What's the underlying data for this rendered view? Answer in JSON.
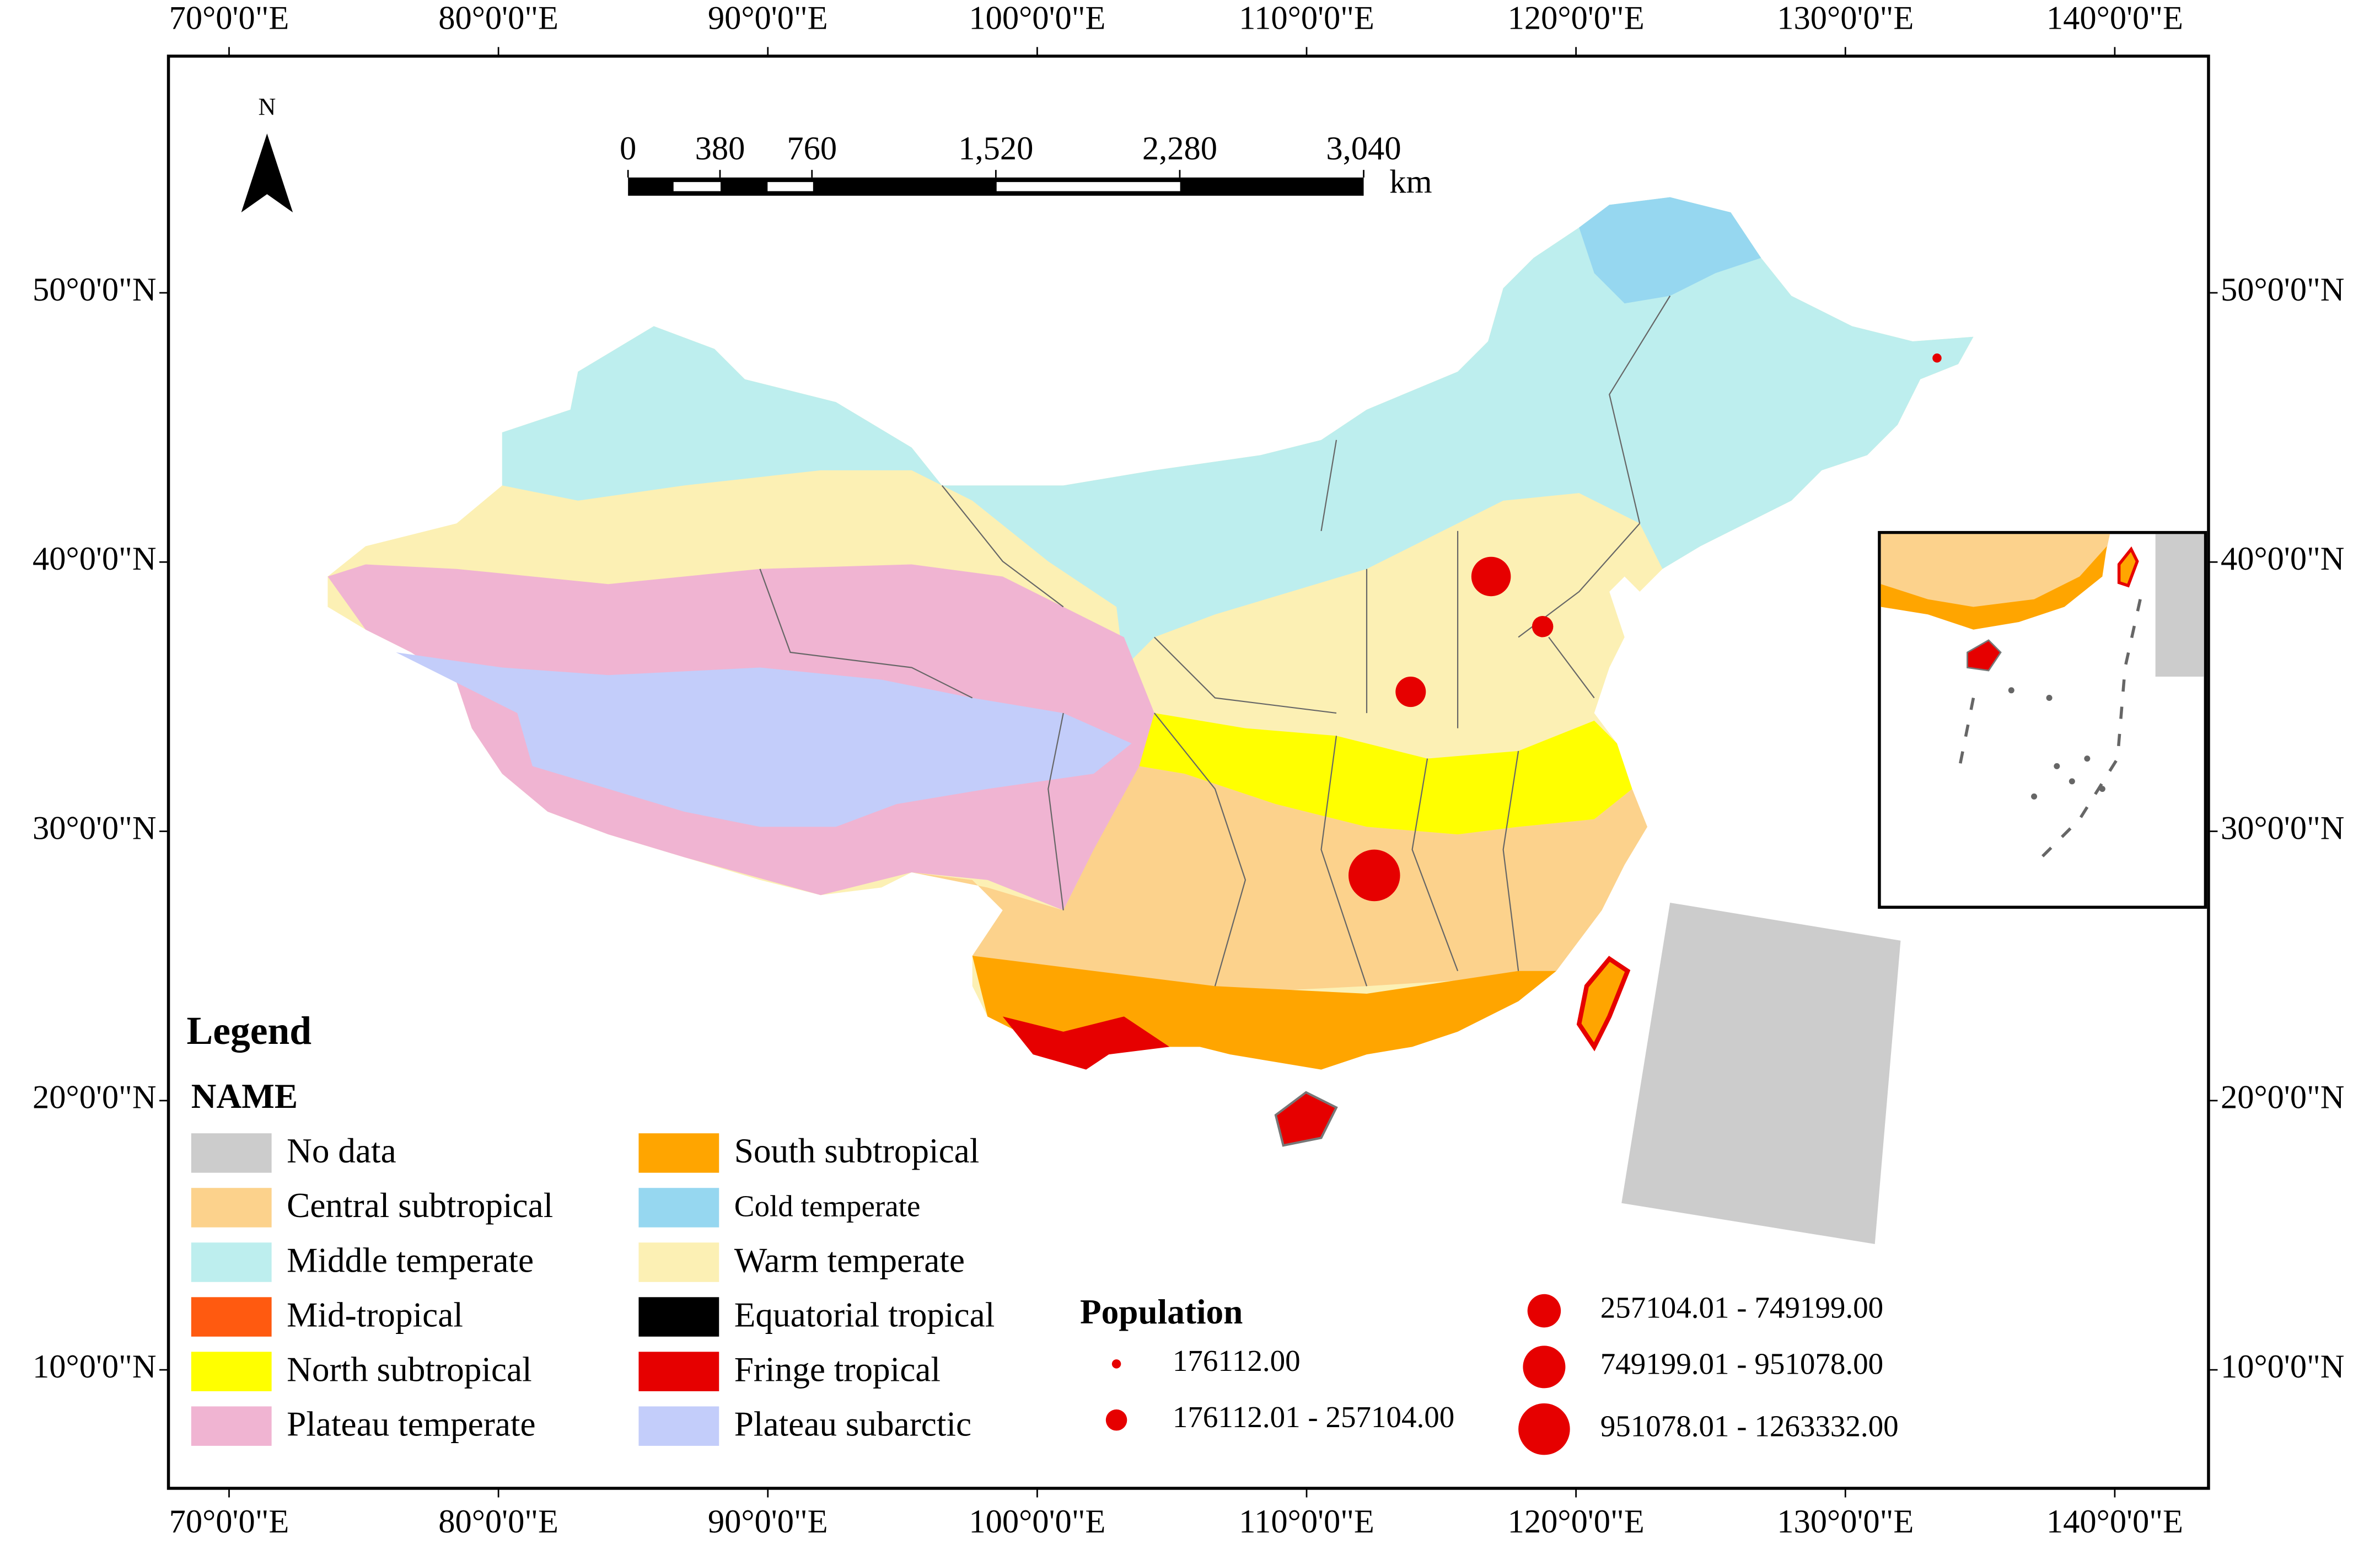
{
  "map": {
    "xlim": [
      67.75,
      143.48
    ],
    "ylim": [
      5.6,
      58.79
    ],
    "xticks": [
      {
        "value": 70,
        "label": "70°0'0\"E"
      },
      {
        "value": 80,
        "label": "80°0'0\"E"
      },
      {
        "value": 90,
        "label": "90°0'0\"E"
      },
      {
        "value": 100,
        "label": "100°0'0\"E"
      },
      {
        "value": 110,
        "label": "110°0'0\"E"
      },
      {
        "value": 120,
        "label": "120°0'0\"E"
      },
      {
        "value": 130,
        "label": "130°0'0\"E"
      },
      {
        "value": 140,
        "label": "140°0'0\"E"
      }
    ],
    "yticks": [
      {
        "value": 50,
        "label": "50°0'0\"N"
      },
      {
        "value": 40,
        "label": "40°0'0\"N"
      },
      {
        "value": 30,
        "label": "30°0'0\"N"
      },
      {
        "value": 20,
        "label": "20°0'0\"N"
      },
      {
        "value": 10,
        "label": "10°0'0\"N"
      }
    ]
  },
  "north_arrow": "N",
  "scale_bar": {
    "range": [
      0,
      3040
    ],
    "ticks": [
      0,
      380,
      760,
      {
        "value": 1520,
        "label": "1,520"
      },
      {
        "value": 2280,
        "label": "2,280"
      },
      {
        "value": 3040,
        "label": "3,040"
      }
    ],
    "unit": "km"
  },
  "legend": {
    "title": "Legend",
    "subtitle": "NAME",
    "items": [
      {
        "label": "No data",
        "color": "#cccccc"
      },
      {
        "label": "Central subtropical",
        "color": "#fcd28c"
      },
      {
        "label": "Middle temperate",
        "color": "#bdeeee"
      },
      {
        "label": "Mid-tropical",
        "color": "#ff5a10"
      },
      {
        "label": "North subtropical",
        "color": "#ffff00"
      },
      {
        "label": "Plateau temperate",
        "color": "#f0b4d2"
      },
      {
        "label": "South subtropical",
        "color": "#ffa500"
      },
      {
        "label": "Cold temperate",
        "color": "#96d7f0"
      },
      {
        "label": "Warm temperate",
        "color": "#fcf0b4"
      },
      {
        "label": "Equatorial tropical",
        "color": "#000000"
      },
      {
        "label": "Fringe tropical",
        "color": "#e60000"
      },
      {
        "label": "Plateau subarctic",
        "color": "#c3cdfa"
      }
    ]
  },
  "population_legend": {
    "title": "Population",
    "classes": [
      "176112.00",
      "176112.01 - 257104.00",
      "257104.01 - 749199.00",
      "749199.01 - 951078.00",
      "951078.01 - 1263332.00"
    ]
  }
}
